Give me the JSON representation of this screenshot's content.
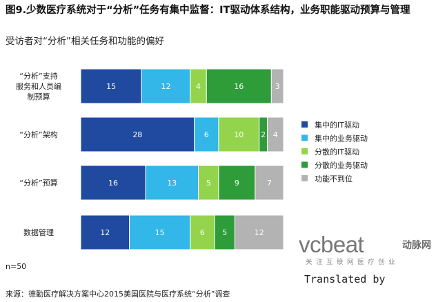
{
  "header": {
    "title": "图9.少数医疗系统对于“分析”任务有集中监督：IT驱动体系结构，业务职能驱动预算与管理",
    "subtitle": "受访者对“分析”相关任务和功能的偏好"
  },
  "footer": {
    "note": "n=50",
    "source": "来源：德勤医疗解决方案中心2015美国医院与医疗系统“分析”调查"
  },
  "watermark": {
    "brand": "vcbeat",
    "brand_cn": "动脉网",
    "tagline": "关注互联网医疗创业",
    "translated": "Translated by"
  },
  "colors": {
    "centralized_it": "#1f4aa0",
    "centralized_business": "#33b6e8",
    "decentralized_it": "#93d44c",
    "decentralized_business": "#2e9c39",
    "not_in_place": "#b3b3b3"
  },
  "chart_data": {
    "type": "bar",
    "orientation": "horizontal",
    "stacked": true,
    "categories": [
      "“分析”支持服务和人员编制预算",
      "“分析”架构",
      "“分析”预算",
      "数据管理"
    ],
    "series": [
      {
        "name": "集中的IT驱动",
        "color": "#1f4aa0",
        "label_color": "#ffffff",
        "values": [
          15,
          28,
          16,
          12
        ]
      },
      {
        "name": "集中的业务驱动",
        "color": "#33b6e8",
        "label_color": "#ffffff",
        "values": [
          12,
          6,
          13,
          15
        ]
      },
      {
        "name": "分散的IT驱动",
        "color": "#93d44c",
        "label_color": "#ffffff",
        "values": [
          4,
          10,
          5,
          6
        ]
      },
      {
        "name": "分散的业务驱动",
        "color": "#2e9c39",
        "label_color": "#ffffff",
        "values": [
          16,
          2,
          9,
          5
        ]
      },
      {
        "name": "功能不到位",
        "color": "#b3b3b3",
        "label_color": "#ffffff",
        "values": [
          3,
          4,
          7,
          12
        ]
      }
    ],
    "category_label_lines": [
      [
        "“分析”支持",
        "服务和人员编",
        "制预算"
      ],
      [
        "“分析”架构"
      ],
      [
        "“分析”预算"
      ],
      [
        "数据管理"
      ]
    ],
    "xlim": [
      0,
      50
    ],
    "grid": false,
    "legend_position": "right"
  }
}
